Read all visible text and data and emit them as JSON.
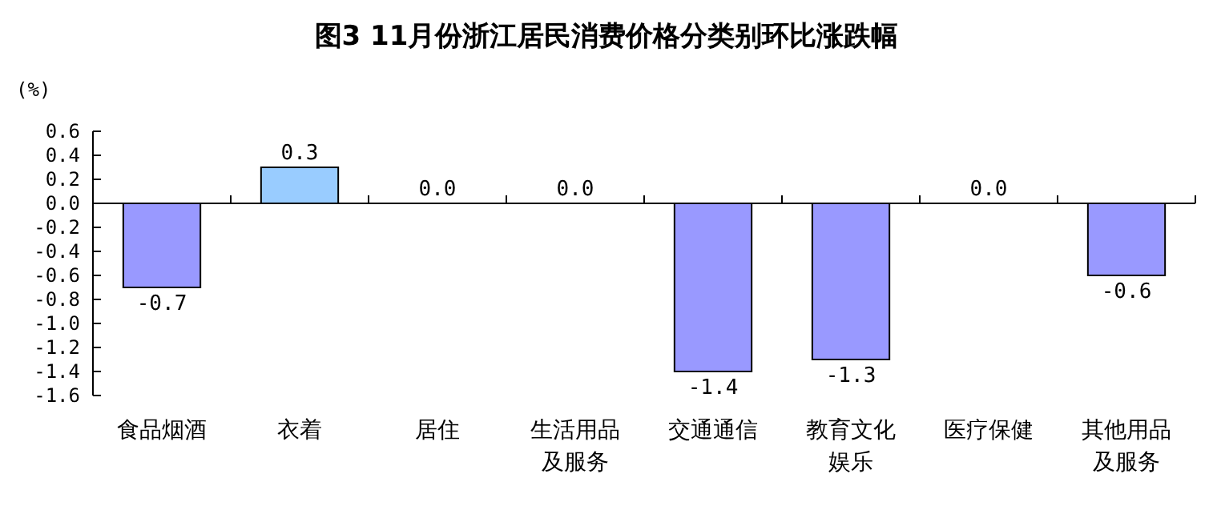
{
  "chart_data": {
    "type": "bar",
    "title": "图3 11月份浙江居民消费价格分类别环比涨跌幅",
    "ylabel": "(%)",
    "categories": [
      "食品烟酒",
      "衣着",
      "居住",
      "生活用品及服务",
      "交通通信",
      "教育文化娱乐",
      "医疗保健",
      "其他用品及服务"
    ],
    "values": [
      -0.7,
      0.3,
      0.0,
      0.0,
      -1.4,
      -1.3,
      0.0,
      -0.6
    ],
    "value_labels": [
      "-0.7",
      "0.3",
      "0.0",
      "0.0",
      "-1.4",
      "-1.3",
      "0.0",
      "-0.6"
    ],
    "colors": [
      "#9999ff",
      "#99ccff",
      null,
      null,
      "#9999ff",
      "#9999ff",
      null,
      "#9999ff"
    ],
    "ylim": [
      -1.6,
      0.6
    ],
    "yticks": [
      {
        "value": 0.6,
        "label": "0.6"
      },
      {
        "value": 0.4,
        "label": "0.4"
      },
      {
        "value": 0.2,
        "label": "0.2"
      },
      {
        "value": 0,
        "label": "0.0"
      },
      {
        "value": -0.2,
        "label": "-0.2"
      },
      {
        "value": -0.4,
        "label": "-0.4"
      },
      {
        "value": -0.6,
        "label": "-0.6"
      },
      {
        "value": -0.8,
        "label": "-0.8"
      },
      {
        "value": -1,
        "label": "-1.0"
      },
      {
        "value": -1.2,
        "label": "-1.2"
      },
      {
        "value": -1.4,
        "label": "-1.4"
      },
      {
        "value": -1.6,
        "label": "-1.6"
      }
    ]
  }
}
